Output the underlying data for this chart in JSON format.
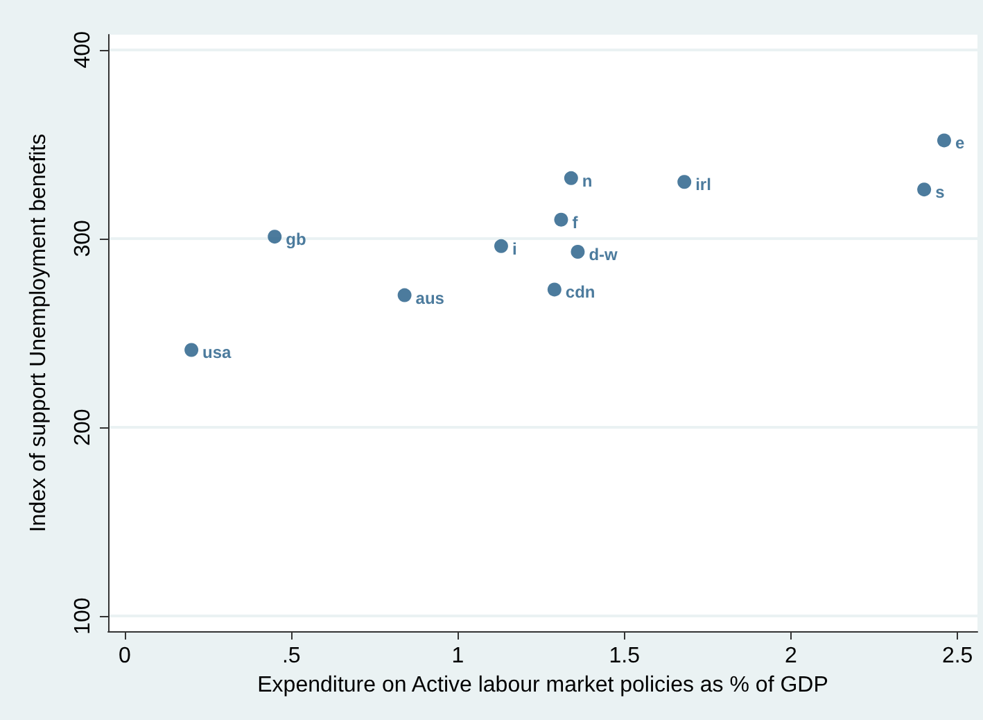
{
  "chart_data": {
    "type": "scatter",
    "xlabel": "Expenditure on Active labour market policies as % of GDP",
    "ylabel": "Index of support Unemployment benefits",
    "x": [
      0.2,
      0.45,
      0.84,
      1.13,
      1.29,
      1.31,
      1.34,
      1.36,
      1.68,
      2.4,
      2.46
    ],
    "series": [
      {
        "color": "#1f5a85",
        "values": [
          241,
          301,
          270,
          296,
          273,
          310,
          332,
          293,
          330,
          326,
          352
        ]
      }
    ],
    "annotations": [
      {
        "text": "usa",
        "x": 0.2,
        "y": 241
      },
      {
        "text": "gb",
        "x": 0.45,
        "y": 301
      },
      {
        "text": "aus",
        "x": 0.84,
        "y": 270
      },
      {
        "text": "i",
        "x": 1.13,
        "y": 296
      },
      {
        "text": "cdn",
        "x": 1.29,
        "y": 273
      },
      {
        "text": "f",
        "x": 1.31,
        "y": 310
      },
      {
        "text": "n",
        "x": 1.34,
        "y": 332
      },
      {
        "text": "d-w",
        "x": 1.36,
        "y": 293
      },
      {
        "text": "irl",
        "x": 1.68,
        "y": 330
      },
      {
        "text": "s",
        "x": 2.4,
        "y": 326
      },
      {
        "text": "e",
        "x": 2.46,
        "y": 352
      }
    ],
    "xlim": [
      -0.05,
      2.56
    ],
    "xticks": [
      0,
      {
        "value": 0.5,
        "label": ".5"
      },
      1,
      {
        "value": 1.5,
        "label": "1.5"
      },
      2,
      {
        "value": 2.5,
        "label": "2.5"
      }
    ],
    "ylim": [
      92,
      408
    ],
    "yticks": [
      100,
      200,
      300,
      400
    ],
    "grid": "y",
    "marker": "circle"
  }
}
